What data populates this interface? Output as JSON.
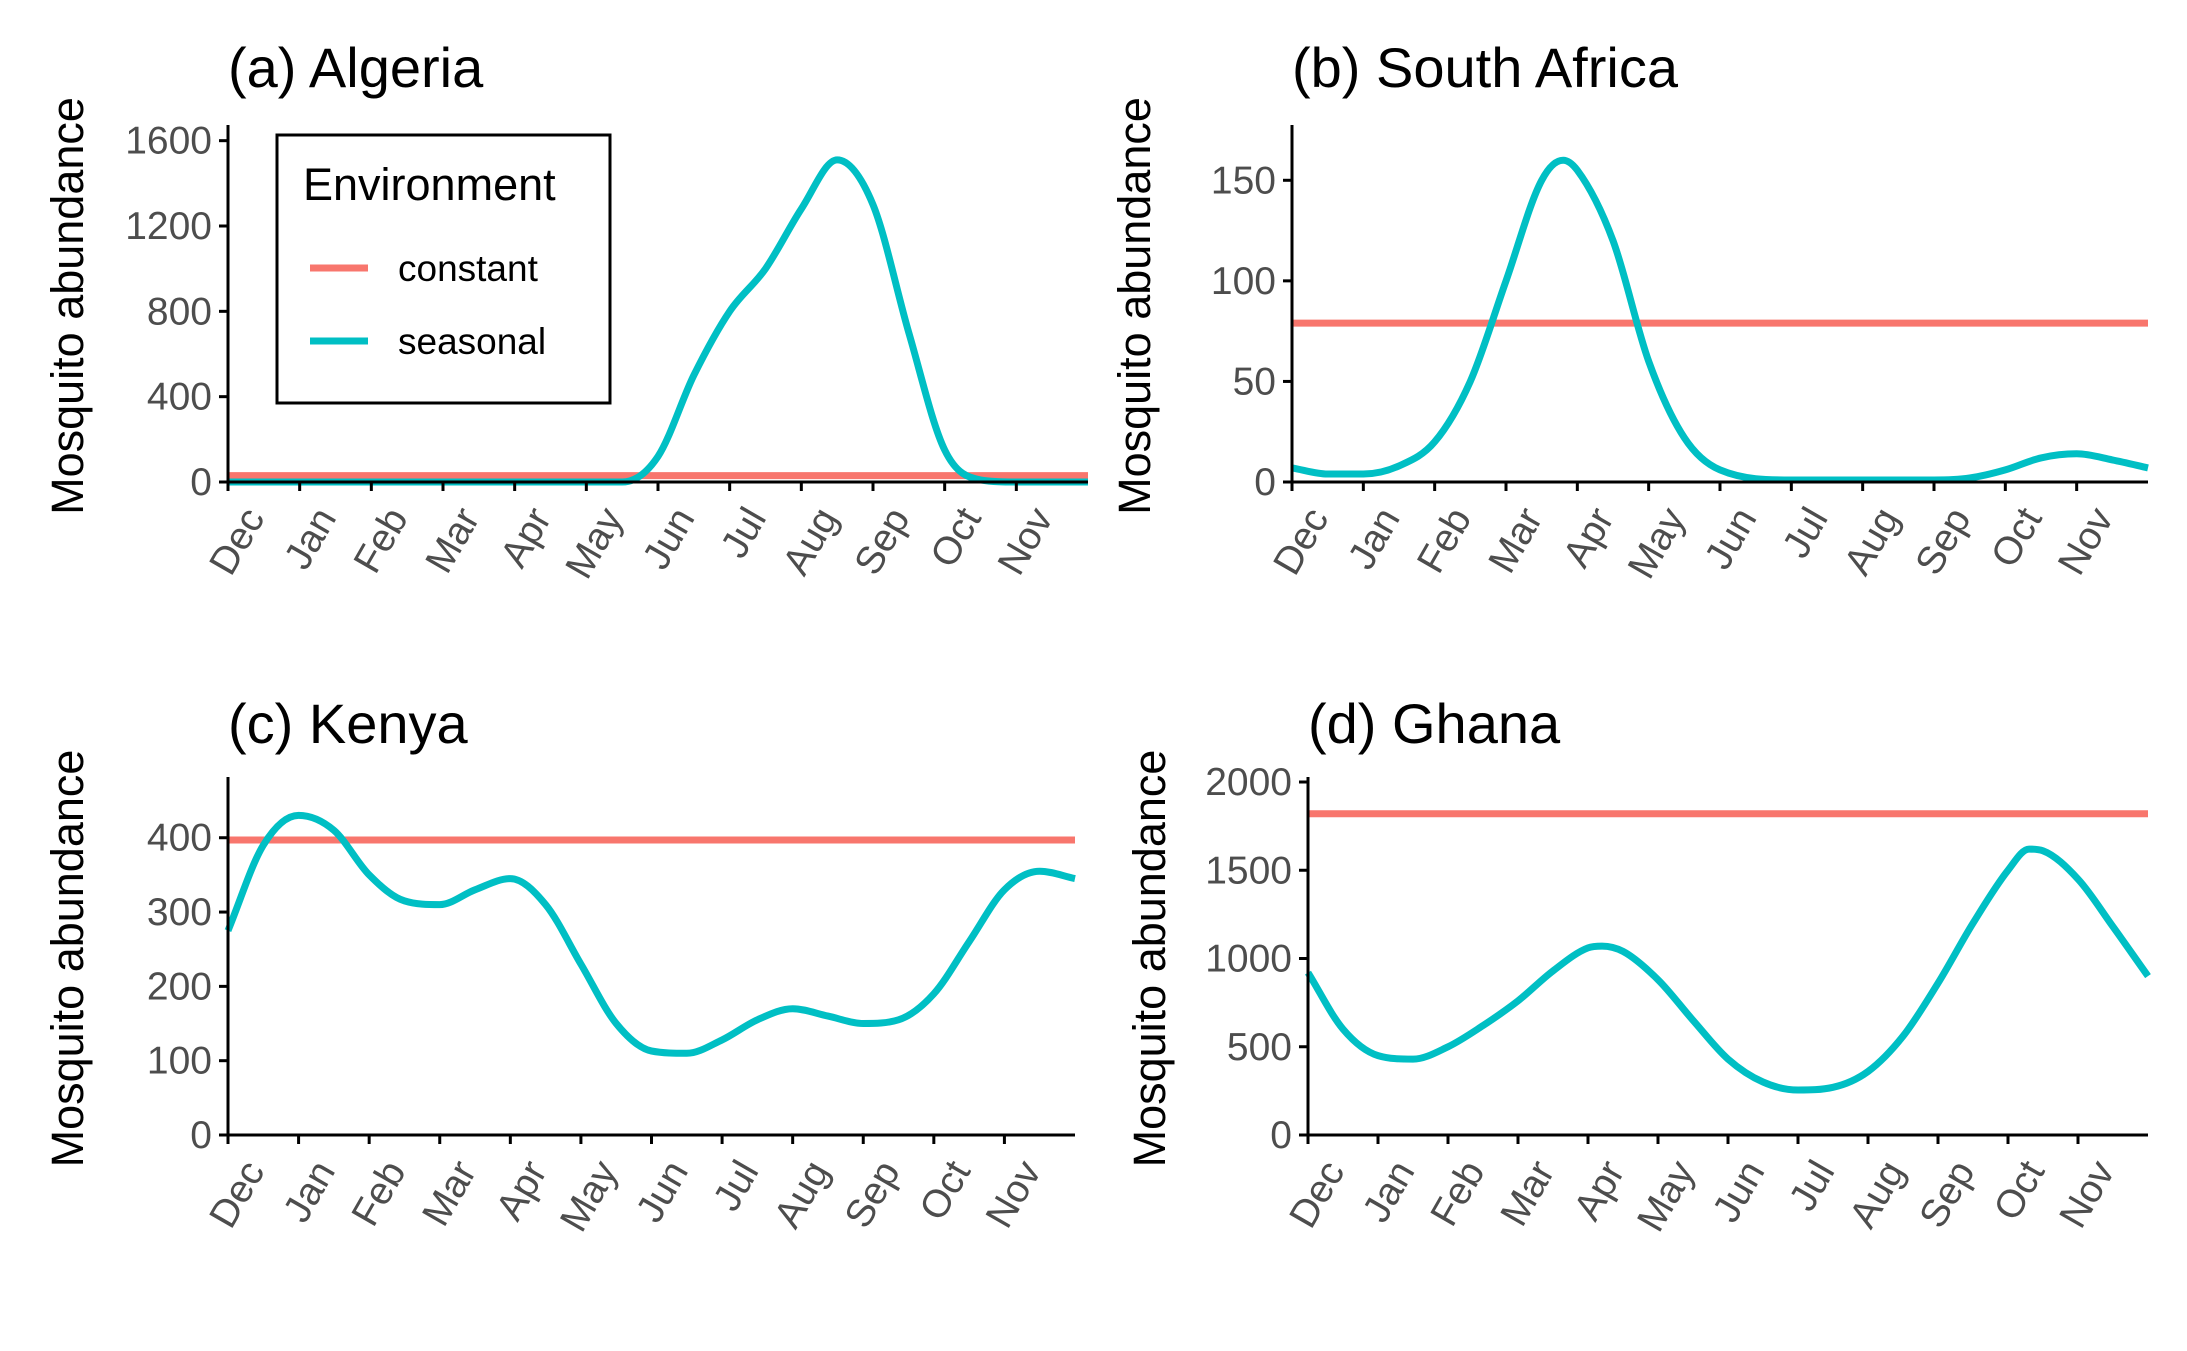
{
  "colors": {
    "constant": "#f8766d",
    "seasonal": "#00bfc4",
    "axis": "#000000",
    "tick_text": "#4d4d4d"
  },
  "months": [
    "Dec",
    "Jan",
    "Feb",
    "Mar",
    "Apr",
    "May",
    "Jun",
    "Jul",
    "Aug",
    "Sep",
    "Oct",
    "Nov"
  ],
  "legend": {
    "title": "Environment",
    "placement": "top-left inside panel (a)",
    "items": [
      {
        "label": "constant",
        "color": "#f8766d"
      },
      {
        "label": "seasonal",
        "color": "#00bfc4"
      }
    ]
  },
  "chart_data": [
    {
      "type": "line",
      "title": "(a) Algeria",
      "xlabel": "",
      "ylabel": "Mosquito abundance",
      "x_unit": "month index (0 = Dec, 11 = Nov)",
      "xlim": [
        0,
        12
      ],
      "ylim": [
        0,
        1650
      ],
      "yticks": [
        0,
        400,
        800,
        1200,
        1600
      ],
      "grid": false,
      "series": [
        {
          "name": "constant",
          "x": [
            0,
            12
          ],
          "values": [
            30,
            30
          ]
        },
        {
          "name": "seasonal",
          "x": [
            0,
            1,
            2,
            3,
            4,
            5,
            5.5,
            6,
            6.5,
            7,
            7.5,
            8,
            8.5,
            9,
            9.5,
            10,
            10.5,
            11,
            12
          ],
          "values": [
            0,
            0,
            0,
            0,
            0,
            0,
            0,
            120,
            500,
            800,
            1000,
            1280,
            1510,
            1300,
            700,
            150,
            10,
            0,
            0
          ]
        }
      ]
    },
    {
      "type": "line",
      "title": "(b)  South Africa",
      "xlabel": "",
      "ylabel": "Mosquito abundance",
      "x_unit": "month index (0 = Dec, 11 = Nov)",
      "xlim": [
        0,
        12
      ],
      "ylim": [
        0,
        175
      ],
      "yticks": [
        0,
        50,
        100,
        150
      ],
      "grid": false,
      "series": [
        {
          "name": "constant",
          "x": [
            0,
            12
          ],
          "values": [
            79,
            79
          ]
        },
        {
          "name": "seasonal",
          "x": [
            0,
            0.5,
            1,
            1.5,
            2,
            2.5,
            3,
            3.5,
            3.8,
            4,
            4.5,
            5,
            5.5,
            6,
            7,
            8,
            9,
            9.5,
            10,
            10.5,
            11,
            11.5,
            12
          ],
          "values": [
            7,
            4,
            4,
            8,
            20,
            50,
            100,
            150,
            160,
            155,
            120,
            60,
            22,
            6,
            1,
            1,
            1,
            2,
            6,
            12,
            14,
            11,
            7
          ]
        }
      ]
    },
    {
      "type": "line",
      "title": "(c)  Kenya",
      "xlabel": "",
      "ylabel": "Mosquito abundance",
      "x_unit": "month index (0 = Dec, 11 = Nov)",
      "xlim": [
        0,
        12
      ],
      "ylim": [
        0,
        475
      ],
      "yticks": [
        0,
        100,
        200,
        300,
        400
      ],
      "grid": false,
      "series": [
        {
          "name": "constant",
          "x": [
            0,
            12
          ],
          "values": [
            397,
            397
          ]
        },
        {
          "name": "seasonal",
          "x": [
            0,
            0.5,
            1,
            1.5,
            2,
            2.5,
            3,
            3.5,
            4,
            4.5,
            5,
            5.5,
            6,
            6.5,
            7,
            7.5,
            8,
            8.5,
            9,
            9.5,
            10,
            10.5,
            11,
            11.5,
            12
          ],
          "values": [
            275,
            390,
            430,
            410,
            350,
            315,
            310,
            330,
            345,
            310,
            230,
            150,
            113,
            110,
            128,
            155,
            170,
            160,
            150,
            155,
            190,
            260,
            330,
            355,
            345
          ]
        }
      ]
    },
    {
      "type": "line",
      "title": "(d) Ghana",
      "xlabel": "",
      "ylabel": "Mosquito abundance",
      "x_unit": "month index (0 = Dec, 11 = Nov)",
      "xlim": [
        0,
        12
      ],
      "ylim": [
        0,
        2000
      ],
      "yticks": [
        0,
        500,
        1000,
        1500,
        2000
      ],
      "grid": false,
      "series": [
        {
          "name": "constant",
          "x": [
            0,
            12
          ],
          "values": [
            1820,
            1820
          ]
        },
        {
          "name": "seasonal",
          "x": [
            0,
            0.5,
            1,
            1.5,
            2,
            2.5,
            3,
            3.5,
            4,
            4.2,
            4.5,
            5,
            5.5,
            6,
            6.5,
            7,
            7.5,
            8,
            8.5,
            9,
            9.5,
            10,
            10.3,
            10.5,
            11,
            11.5,
            12
          ],
          "values": [
            920,
            600,
            450,
            430,
            500,
            620,
            760,
            930,
            1060,
            1070,
            1040,
            880,
            650,
            430,
            300,
            255,
            270,
            360,
            560,
            860,
            1200,
            1500,
            1620,
            1610,
            1450,
            1180,
            900
          ]
        }
      ]
    }
  ]
}
